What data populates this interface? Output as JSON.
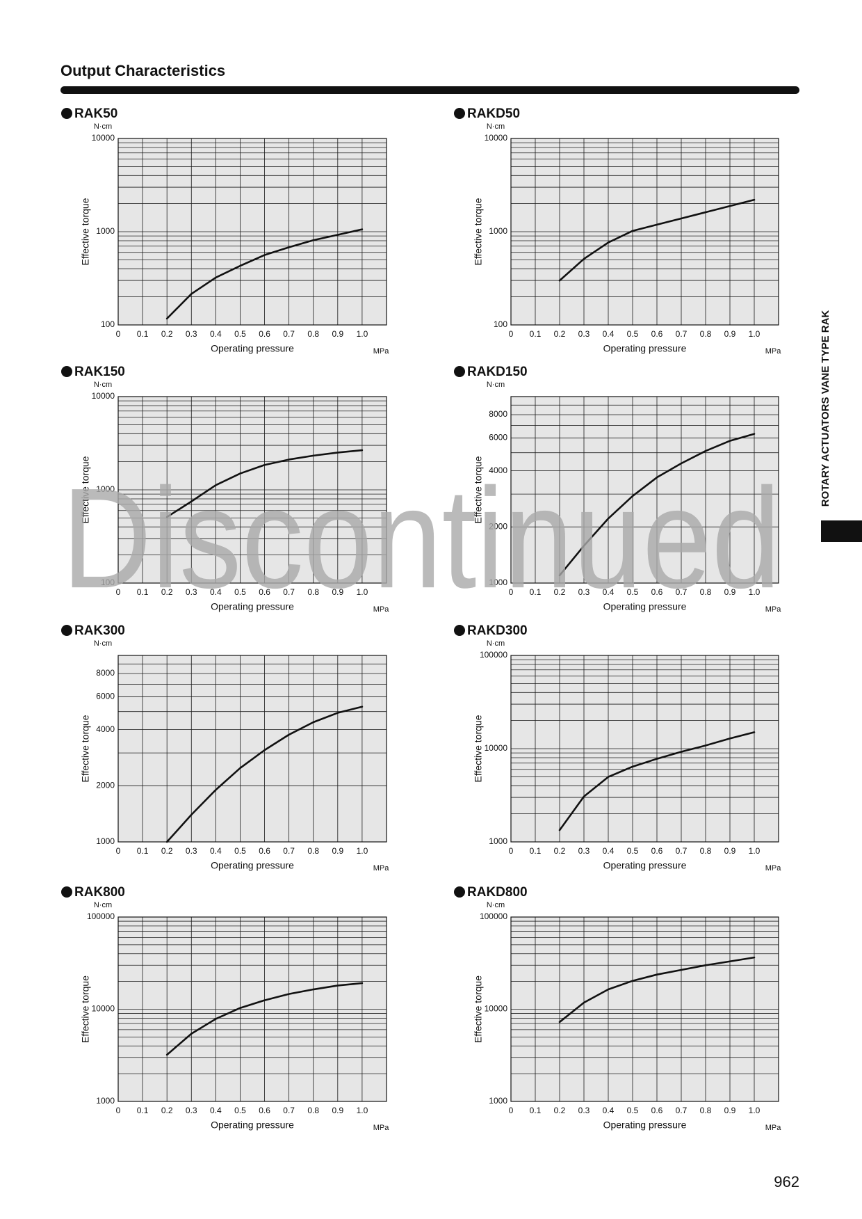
{
  "page": {
    "title": "Output Characteristics",
    "side_label": "ROTARY ACTUATORS VANE TYPE RAK",
    "page_number": "962",
    "watermark": "Discontinued"
  },
  "chart_data": [
    {
      "type": "line",
      "title": "RAK50",
      "y_unit": "N·cm",
      "y_label": "Effective torque",
      "x_label": "Operating pressure",
      "x_unit": "MPa",
      "x": [
        0.2,
        0.3,
        0.4,
        0.5,
        0.6,
        0.7,
        0.8,
        0.9,
        1
      ],
      "values": [
        117,
        215,
        322,
        430,
        562,
        681,
        810,
        926,
        1060
      ],
      "xlim": [
        0,
        1.1
      ],
      "xticks": [
        0,
        0.1,
        0.2,
        0.3,
        0.4,
        0.5,
        0.6,
        0.7,
        0.8,
        0.9,
        {
          "value": 1,
          "label": "1.0"
        }
      ],
      "ylim": [
        100,
        10000
      ],
      "yticks": [
        100,
        1000,
        10000
      ],
      "ylog": true,
      "grid": true,
      "color": "#111111"
    },
    {
      "type": "line",
      "title": "RAKD50",
      "y_unit": "N·cm",
      "y_label": "Effective torque",
      "x_label": "Operating pressure",
      "x_unit": "MPa",
      "x": [
        0.2,
        0.3,
        0.4,
        0.5,
        0.6,
        0.7,
        0.8,
        0.9,
        1
      ],
      "values": [
        299,
        511,
        765,
        1020,
        1190,
        1386,
        1616,
        1884,
        2198
      ],
      "xlim": [
        0,
        1.1
      ],
      "xticks": [
        0,
        0.1,
        0.2,
        0.3,
        0.4,
        0.5,
        0.6,
        0.7,
        0.8,
        0.9,
        {
          "value": 1,
          "label": "1.0"
        }
      ],
      "ylim": [
        100,
        10000
      ],
      "yticks": [
        100,
        1000,
        10000
      ],
      "ylog": true,
      "grid": true,
      "color": "#111111"
    },
    {
      "type": "line",
      "title": "RAK150",
      "y_unit": "N·cm",
      "y_label": "Effective torque",
      "x_label": "Operating pressure",
      "x_unit": "MPa",
      "x": [
        0.2,
        0.3,
        0.4,
        0.5,
        0.6,
        0.7,
        0.8,
        0.9,
        1
      ],
      "values": [
        511,
        750,
        1122,
        1496,
        1848,
        2113,
        2326,
        2512,
        2661
      ],
      "xlim": [
        0,
        1.1
      ],
      "xticks": [
        0,
        0.1,
        0.2,
        0.3,
        0.4,
        0.5,
        0.6,
        0.7,
        0.8,
        0.9,
        {
          "value": 1,
          "label": "1.0"
        }
      ],
      "ylim": [
        100,
        10000
      ],
      "yticks": [
        100,
        1000,
        10000
      ],
      "ylog": true,
      "grid": true,
      "color": "#111111"
    },
    {
      "type": "line",
      "title": "RAKD150",
      "y_unit": "N·cm",
      "y_label": "Effective torque",
      "x_label": "Operating pressure",
      "x_unit": "MPa",
      "x": [
        0.2,
        0.3,
        0.4,
        0.5,
        0.6,
        0.7,
        0.8,
        0.9,
        1
      ],
      "values": [
        1100,
        1585,
        2218,
        2929,
        3686,
        4384,
        5109,
        5790,
        6310
      ],
      "xlim": [
        0,
        1.1
      ],
      "xticks": [
        0,
        0.1,
        0.2,
        0.3,
        0.4,
        0.5,
        0.6,
        0.7,
        0.8,
        0.9,
        {
          "value": 1,
          "label": "1.0"
        }
      ],
      "ylim": [
        1000,
        10000
      ],
      "yticks": [
        1000,
        2000,
        4000,
        6000,
        8000
      ],
      "ylog": true,
      "grid": true,
      "color": "#111111"
    },
    {
      "type": "line",
      "title": "RAK300",
      "y_unit": "N·cm",
      "y_label": "Effective torque",
      "x_label": "Operating pressure",
      "x_unit": "MPa",
      "x": [
        0.2,
        0.3,
        0.4,
        0.5,
        0.6,
        0.7,
        0.8,
        0.9,
        1
      ],
      "values": [
        1000,
        1398,
        1901,
        2488,
        3105,
        3758,
        4384,
        4920,
        5309
      ],
      "xlim": [
        0,
        1.1
      ],
      "xticks": [
        0,
        0.1,
        0.2,
        0.3,
        0.4,
        0.5,
        0.6,
        0.7,
        0.8,
        0.9,
        {
          "value": 1,
          "label": "1.0"
        }
      ],
      "ylim": [
        1000,
        10000
      ],
      "yticks": [
        1000,
        2000,
        4000,
        6000,
        8000
      ],
      "ylog": true,
      "grid": true,
      "color": "#111111"
    },
    {
      "type": "line",
      "title": "RAKD300",
      "y_unit": "N·cm",
      "y_label": "Effective torque",
      "x_label": "Operating pressure",
      "x_unit": "MPa",
      "x": [
        0.2,
        0.3,
        0.4,
        0.5,
        0.6,
        0.7,
        0.8,
        0.9,
        1
      ],
      "values": [
        1337,
        3069,
        4977,
        6412,
        7785,
        9250,
        10810,
        12860,
        15000
      ],
      "xlim": [
        0,
        1.1
      ],
      "xticks": [
        0,
        0.1,
        0.2,
        0.3,
        0.4,
        0.5,
        0.6,
        0.7,
        0.8,
        0.9,
        {
          "value": 1,
          "label": "1.0"
        }
      ],
      "ylim": [
        1000,
        100000
      ],
      "yticks": [
        1000,
        10000,
        100000
      ],
      "ylog": true,
      "grid": true,
      "color": "#111111"
    },
    {
      "type": "line",
      "title": "RAK800",
      "y_unit": "N·cm",
      "y_label": "Effective torque",
      "x_label": "Operating pressure",
      "x_unit": "MPa",
      "x": [
        0.2,
        0.3,
        0.4,
        0.5,
        0.6,
        0.7,
        0.8,
        0.9,
        1
      ],
      "values": [
        3206,
        5420,
        7850,
        10310,
        12500,
        14620,
        16400,
        18070,
        19190
      ],
      "xlim": [
        0,
        1.1
      ],
      "xticks": [
        0,
        0.1,
        0.2,
        0.3,
        0.4,
        0.5,
        0.6,
        0.7,
        0.8,
        0.9,
        {
          "value": 1,
          "label": "1.0"
        }
      ],
      "ylim": [
        1000,
        100000
      ],
      "yticks": [
        1000,
        10000,
        100000
      ],
      "ylog": true,
      "grid": true,
      "color": "#111111"
    },
    {
      "type": "line",
      "title": "RAKD800",
      "y_unit": "N·cm",
      "y_label": "Effective torque",
      "x_label": "Operating pressure",
      "x_unit": "MPa",
      "x": [
        0.2,
        0.3,
        0.4,
        0.5,
        0.6,
        0.7,
        0.8,
        0.9,
        1
      ],
      "values": [
        7260,
        11800,
        16400,
        20320,
        23770,
        26690,
        29990,
        33040,
        36400
      ],
      "xlim": [
        0,
        1.1
      ],
      "xticks": [
        0,
        0.1,
        0.2,
        0.3,
        0.4,
        0.5,
        0.6,
        0.7,
        0.8,
        0.9,
        {
          "value": 1,
          "label": "1.0"
        }
      ],
      "ylim": [
        1000,
        100000
      ],
      "yticks": [
        1000,
        10000,
        100000
      ],
      "ylog": true,
      "grid": true,
      "color": "#111111"
    }
  ]
}
